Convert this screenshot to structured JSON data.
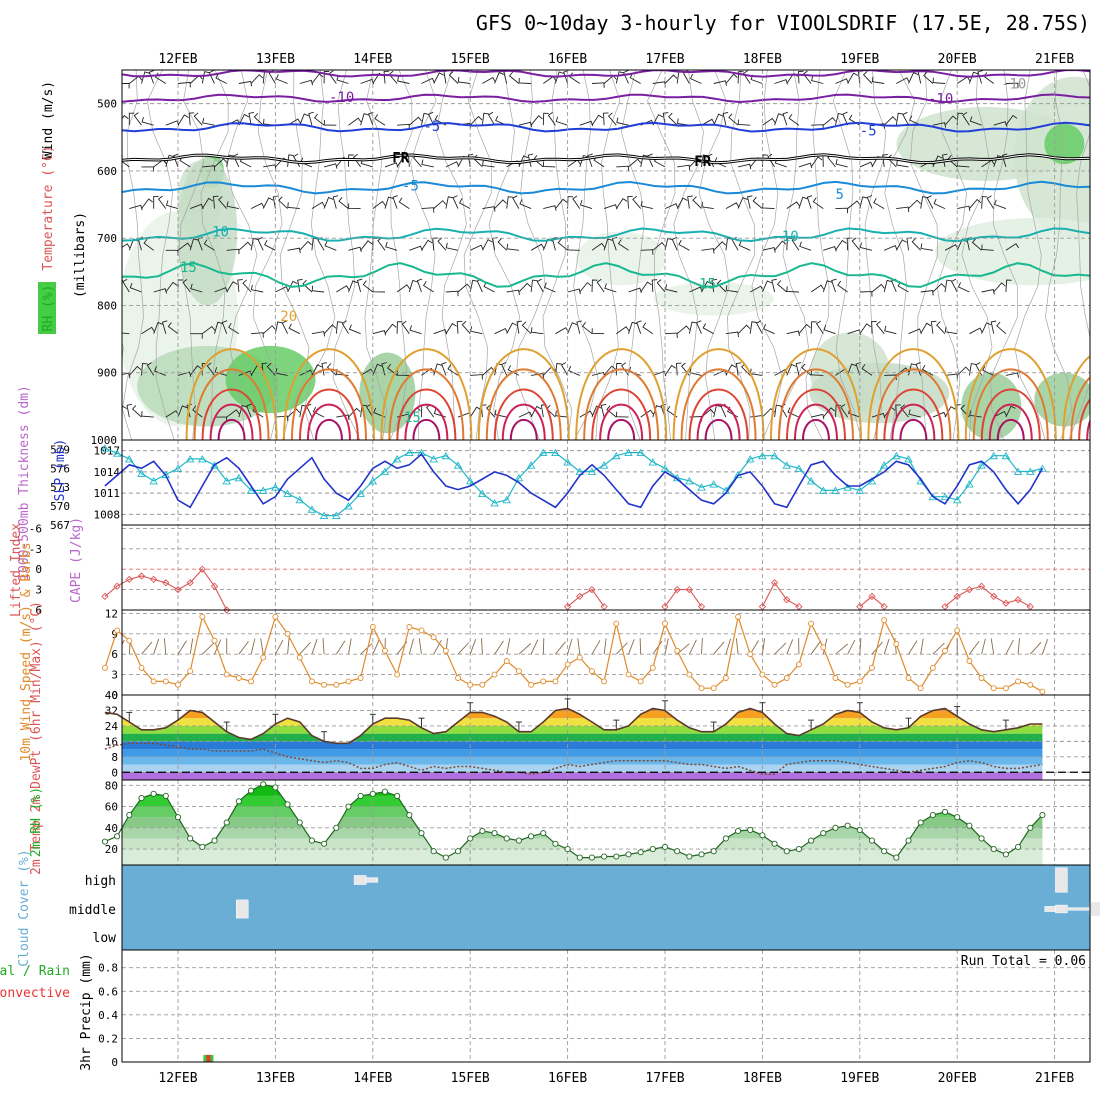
{
  "title": "GFS 0~10day 3-hourly for VIOOLSDRIF (17.5E, 28.75S)",
  "run_total_text": "Run Total = 0.06",
  "colors": {
    "rh": "#44cc44",
    "temp": "#dd5555",
    "wind": "#e08a2a",
    "thick": "#20b8c8",
    "slp": "#2233cc",
    "cape": "#bb66cc",
    "cloud": "#6aaed6",
    "rh2m": "#22aa22",
    "precip_total": "#33cc33",
    "precip_conv": "#ee3333"
  },
  "chart_data": [
    {
      "name": "upper-air",
      "type": "heatmap",
      "x_labels": [
        "12FEB",
        "13FEB",
        "14FEB",
        "15FEB",
        "16FEB",
        "17FEB",
        "18FEB",
        "19FEB",
        "20FEB",
        "21FEB"
      ],
      "ylabel_parts": [
        {
          "text": "Wind (m/s)",
          "color": "#000000"
        },
        {
          "text": "Temperature (°C)",
          "color": "#dd5555"
        },
        {
          "text": "RH (%)",
          "color": "#22aa22"
        },
        {
          "text": "(millibars)",
          "color": "#000000"
        }
      ],
      "y_ticks": [
        500,
        600,
        700,
        800,
        900,
        1000
      ],
      "ylim": [
        450,
        1000
      ],
      "contour_labels": [
        {
          "text": "-10",
          "x": 1.55,
          "p": 490,
          "color": "#7a1fa2"
        },
        {
          "text": "-10",
          "x": 7.7,
          "p": 492,
          "color": "#7a1fa2"
        },
        {
          "text": "-10",
          "x": 8.45,
          "p": 470,
          "color": "#999999"
        },
        {
          "text": "-5",
          "x": 2.52,
          "p": 533,
          "color": "#1f3fd6"
        },
        {
          "text": "-5",
          "x": 7.0,
          "p": 540,
          "color": "#1f3fd6"
        },
        {
          "text": "FR",
          "x": 2.2,
          "p": 580,
          "color": "#000000"
        },
        {
          "text": "FR",
          "x": 5.3,
          "p": 585,
          "color": "#000000"
        },
        {
          "text": "-5",
          "x": 2.3,
          "p": 622,
          "color": "#1a8ad6"
        },
        {
          "text": "5",
          "x": 6.75,
          "p": 634,
          "color": "#1a8ad6"
        },
        {
          "text": "10",
          "x": 0.35,
          "p": 690,
          "color": "#1ab0b0"
        },
        {
          "text": "10",
          "x": 6.2,
          "p": 697,
          "color": "#1ab0b0"
        },
        {
          "text": "15",
          "x": 0.02,
          "p": 743,
          "color": "#18b890"
        },
        {
          "text": "15",
          "x": 5.35,
          "p": 767,
          "color": "#18b890"
        },
        {
          "text": "20",
          "x": 1.05,
          "p": 816,
          "color": "#e0a030"
        },
        {
          "text": "15",
          "x": 2.32,
          "p": 966,
          "color": "#18b890"
        }
      ]
    },
    {
      "name": "thickness-slp",
      "type": "line",
      "ylabel_left": "1000-500mb Thickness (dm)",
      "ylabel_right": "SLP (mb)",
      "left_ticks": [
        567,
        570,
        573,
        576,
        579
      ],
      "right_ticks": [
        1008,
        1011,
        1014,
        1017
      ],
      "series": [
        {
          "name": "Thickness",
          "unit": "dm",
          "ylim": [
            567,
            580.5
          ],
          "values": [
            579.2,
            578.4,
            577.5,
            575.2,
            574.0,
            575.0,
            576.0,
            577.5,
            577.5,
            576.5,
            574.0,
            574.5,
            572.5,
            572.5,
            573.0,
            572.0,
            571.0,
            569.5,
            568.5,
            568.5,
            570.0,
            572.0,
            574.0,
            575.5,
            577.5,
            578.5,
            578.5,
            577.5,
            578.0,
            576.5,
            574.0,
            572.0,
            570.5,
            571.0,
            574.5,
            576.5,
            578.5,
            578.5,
            577.0,
            575.5,
            575.5,
            576.5,
            578.0,
            578.5,
            578.5,
            577.0,
            576.0,
            574.5,
            574.0,
            573.0,
            573.5,
            572.5,
            575.0,
            577.5,
            578.0,
            578.0,
            576.5,
            576.0,
            574.0,
            572.5,
            572.5,
            573.0,
            572.5,
            574.0,
            576.5,
            578.0,
            577.5,
            574.0,
            571.5,
            571.5,
            571.0,
            573.5,
            576.5,
            578.0,
            578.0,
            575.5,
            575.5,
            576.0
          ]
        },
        {
          "name": "SLP",
          "unit": "mb",
          "ylim": [
            1006.5,
            1018.5
          ],
          "values": [
            1012.0,
            1013.5,
            1015.0,
            1014.5,
            1015.5,
            1013.5,
            1010.0,
            1009.0,
            1012.0,
            1015.0,
            1016.0,
            1014.5,
            1012.0,
            1009.5,
            1010.5,
            1013.0,
            1014.5,
            1016.0,
            1013.0,
            1011.0,
            1010.0,
            1012.0,
            1014.5,
            1015.5,
            1014.5,
            1015.0,
            1016.5,
            1014.0,
            1012.0,
            1011.5,
            1012.0,
            1013.0,
            1014.0,
            1013.5,
            1012.5,
            1011.0,
            1010.0,
            1009.0,
            1011.0,
            1013.5,
            1015.0,
            1013.5,
            1011.5,
            1009.5,
            1009.0,
            1012.0,
            1014.0,
            1013.0,
            1011.5,
            1010.0,
            1009.5,
            1011.0,
            1013.5,
            1014.0,
            1012.0,
            1009.5,
            1009.0,
            1012.0,
            1015.0,
            1015.5,
            1013.5,
            1012.0,
            1012.0,
            1013.0,
            1014.0,
            1015.5,
            1015.0,
            1013.0,
            1010.5,
            1009.5,
            1012.0,
            1015.0,
            1015.5,
            1014.0,
            1011.5,
            1009.5,
            1011.5,
            1014.5
          ]
        }
      ]
    },
    {
      "name": "lifted-index-cape",
      "type": "line",
      "ylabel_left": "Lifted Index",
      "ylabel_right": "CAPE (J/kg)",
      "y_ticks": [
        6,
        3,
        0,
        -3,
        -6
      ],
      "ylim": [
        6,
        -6.5
      ],
      "series": [
        {
          "name": "Lifted Index",
          "segments": [
            {
              "start": 0,
              "values": [
                4.0,
                2.5,
                1.5,
                1.0,
                1.5,
                2.0,
                3.0,
                2.0,
                0.0,
                2.5,
                6.0
              ]
            },
            {
              "start": 38,
              "values": [
                5.5,
                4.0,
                3.0,
                5.5
              ]
            },
            {
              "start": 46,
              "values": [
                5.5,
                3.0,
                3.0,
                5.5
              ]
            },
            {
              "start": 54,
              "values": [
                5.5,
                2.0,
                4.5,
                5.5
              ]
            },
            {
              "start": 62,
              "values": [
                5.5,
                4.0,
                5.5
              ]
            },
            {
              "start": 69,
              "values": [
                5.5,
                4.0,
                3.0,
                2.5,
                4.0,
                5.0,
                4.5,
                5.5
              ]
            }
          ]
        }
      ]
    },
    {
      "name": "10m-wind",
      "type": "line",
      "ylabel_left": "10m Wind Speed (m/s) & Barbs",
      "y_ticks": [
        0,
        3,
        6,
        9,
        12
      ],
      "ylim": [
        0,
        12.5
      ],
      "series": [
        {
          "name": "10m Wind Speed",
          "unit": "m/s",
          "values": [
            4.0,
            9.5,
            8.0,
            4.0,
            2.0,
            2.0,
            1.5,
            3.5,
            11.5,
            8.0,
            3.0,
            2.5,
            2.0,
            5.5,
            11.5,
            9.0,
            5.5,
            2.0,
            1.5,
            1.5,
            2.0,
            2.5,
            10.0,
            6.5,
            3.0,
            10.0,
            9.5,
            8.5,
            6.5,
            2.5,
            1.5,
            1.5,
            3.0,
            5.0,
            3.5,
            1.5,
            2.0,
            2.0,
            4.5,
            5.5,
            3.5,
            2.0,
            10.5,
            3.0,
            2.0,
            4.0,
            10.5,
            6.5,
            3.0,
            1.0,
            1.0,
            2.5,
            11.5,
            6.0,
            3.0,
            1.5,
            2.5,
            4.5,
            10.5,
            7.0,
            2.5,
            1.5,
            2.0,
            4.0,
            11.0,
            7.5,
            2.5,
            1.0,
            4.0,
            6.5,
            9.5,
            5.0,
            2.5,
            1.0,
            1.0,
            2.0,
            1.5,
            0.5
          ]
        }
      ]
    },
    {
      "name": "2m-temperature",
      "type": "area",
      "ylabel_left": "2m Temp 2m DewPt (6hr Min/Max) (°C)",
      "y_ticks": [
        0,
        8,
        16,
        24,
        32,
        40
      ],
      "ylim": [
        -4,
        40
      ],
      "series": [
        {
          "name": "2m Temp",
          "unit": "°C",
          "values": [
            31,
            30,
            26,
            22,
            22,
            23,
            27,
            32,
            31,
            26,
            21,
            18,
            17,
            20,
            25,
            28,
            26,
            19,
            16,
            15,
            15,
            19,
            25,
            28,
            28,
            27,
            23,
            20,
            21,
            26,
            31,
            31,
            29,
            26,
            21,
            21,
            26,
            32,
            33,
            30,
            26,
            22,
            22,
            24,
            30,
            33,
            32,
            27,
            23,
            21,
            21,
            25,
            31,
            33,
            31,
            25,
            20,
            19,
            22,
            25,
            30,
            32,
            31,
            26,
            23,
            22,
            23,
            29,
            32,
            33,
            29,
            25,
            22,
            21,
            22,
            23,
            25,
            25
          ]
        },
        {
          "name": "2m DewPt",
          "unit": "°C",
          "values": [
            12,
            14,
            15,
            15,
            15,
            14,
            13,
            12,
            12,
            11,
            11,
            11,
            11,
            12,
            10,
            8,
            7,
            6,
            5,
            6,
            5,
            2,
            2,
            4,
            5,
            3,
            1,
            3,
            2,
            3,
            3,
            2,
            1,
            0,
            0,
            -1,
            0,
            2,
            4,
            3,
            4,
            5,
            6,
            6,
            6,
            6,
            6,
            5,
            4,
            4,
            3,
            2,
            3,
            1,
            -1,
            -1,
            4,
            5,
            6,
            6,
            6,
            5,
            4,
            3,
            2,
            1,
            0,
            1,
            2,
            3,
            5,
            6,
            5,
            3,
            2,
            2,
            3,
            4
          ]
        }
      ]
    },
    {
      "name": "2m-rh",
      "type": "area",
      "ylabel_left": "2m RH (%)",
      "y_ticks": [
        20,
        40,
        60,
        80
      ],
      "ylim": [
        5,
        85
      ],
      "series": [
        {
          "name": "2m RH",
          "unit": "%",
          "values": [
            27,
            32,
            52,
            68,
            72,
            70,
            50,
            30,
            22,
            28,
            45,
            65,
            75,
            81,
            78,
            62,
            45,
            28,
            25,
            40,
            60,
            70,
            72,
            74,
            70,
            52,
            35,
            18,
            12,
            18,
            30,
            37,
            35,
            30,
            28,
            32,
            35,
            25,
            20,
            12,
            12,
            13,
            13,
            15,
            17,
            20,
            22,
            18,
            13,
            15,
            18,
            30,
            37,
            38,
            33,
            25,
            18,
            20,
            28,
            35,
            40,
            42,
            38,
            28,
            18,
            12,
            28,
            45,
            52,
            55,
            50,
            42,
            30,
            20,
            15,
            22,
            40,
            52
          ]
        }
      ]
    },
    {
      "name": "cloud-cover",
      "type": "bar",
      "ylabel_left": "Cloud Cover (%)",
      "level_labels": [
        "high",
        "middle",
        "low"
      ],
      "blocks": [
        {
          "level": "middle",
          "t": 0.66,
          "height": 0.7
        },
        {
          "level": "high",
          "t": 1.87,
          "height": 0.35
        },
        {
          "level": "high",
          "t": 1.99,
          "height": 0.18
        },
        {
          "level": "middle",
          "t": 8.96,
          "height": 0.2
        },
        {
          "level": "middle",
          "t": 9.07,
          "height": 0.3
        },
        {
          "level": "middle",
          "t": 9.2,
          "height": 0.1
        },
        {
          "level": "middle",
          "t": 9.33,
          "height": 0.1
        },
        {
          "level": "high",
          "t": 9.07,
          "height": 0.95
        },
        {
          "level": "middle",
          "t": 9.42,
          "height": 0.55
        },
        {
          "level": "middle",
          "t": 9.55,
          "height": 0.3
        }
      ]
    },
    {
      "name": "precip",
      "type": "bar",
      "ylabel_left": "3hr Precip (mm)",
      "ylabel_total": "Total / Rain",
      "ylabel_conv": "Convective",
      "y_ticks": [
        0,
        0.2,
        0.4,
        0.6,
        0.8
      ],
      "ylim": [
        0,
        0.95
      ],
      "bars": [
        {
          "t": 0.3125,
          "total": 0.06,
          "convective": 0.06
        }
      ]
    }
  ]
}
